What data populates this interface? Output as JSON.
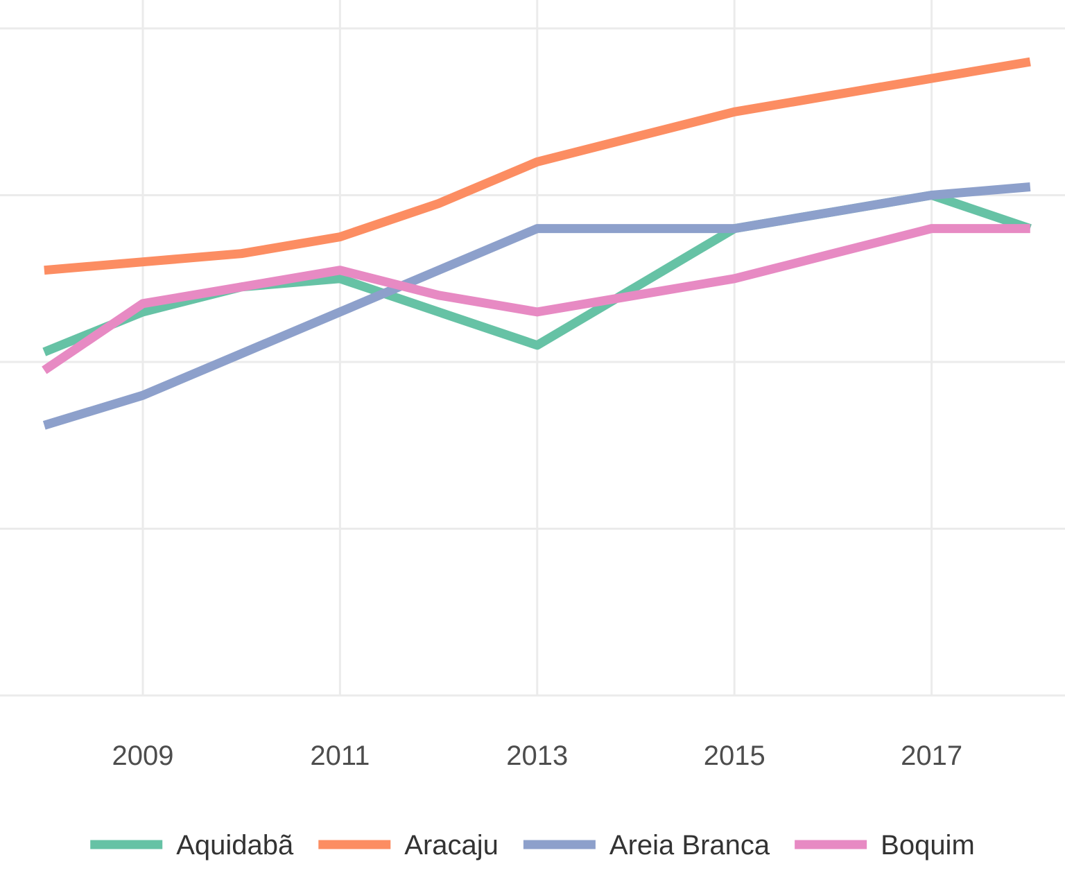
{
  "chart_data": {
    "type": "line",
    "title": "",
    "xlabel": "",
    "ylabel": "",
    "grid": true,
    "legend_position": "bottom",
    "x": [
      2008,
      2009,
      2010,
      2011,
      2012,
      2013,
      2014,
      2015,
      2016,
      2017,
      2018
    ],
    "x_ticks": [
      "2009",
      "2011",
      "2013",
      "2015",
      "2017"
    ],
    "xlim": [
      2008.27,
      2018.68
    ],
    "y_scale": [
      0,
      4
    ],
    "series": [
      {
        "name": "Aquidabã",
        "color": "#66c2a5",
        "values": [
          2.06,
          2.3,
          2.45,
          2.5,
          2.3,
          2.1,
          2.45,
          2.8,
          2.9,
          3.0,
          2.8
        ]
      },
      {
        "name": "Aracaju",
        "color": "#fc8d62",
        "values": [
          2.55,
          2.6,
          2.65,
          2.75,
          2.95,
          3.2,
          3.35,
          3.5,
          3.6,
          3.7,
          3.8
        ]
      },
      {
        "name": "Areia Branca",
        "color": "#8da0cb",
        "values": [
          1.62,
          1.8,
          2.05,
          2.3,
          2.55,
          2.8,
          2.8,
          2.8,
          2.9,
          3.0,
          3.05
        ]
      },
      {
        "name": "Boquim",
        "color": "#e78ac3",
        "values": [
          1.95,
          2.35,
          2.45,
          2.55,
          2.4,
          2.3,
          2.4,
          2.5,
          2.65,
          2.8,
          2.8
        ]
      }
    ]
  }
}
